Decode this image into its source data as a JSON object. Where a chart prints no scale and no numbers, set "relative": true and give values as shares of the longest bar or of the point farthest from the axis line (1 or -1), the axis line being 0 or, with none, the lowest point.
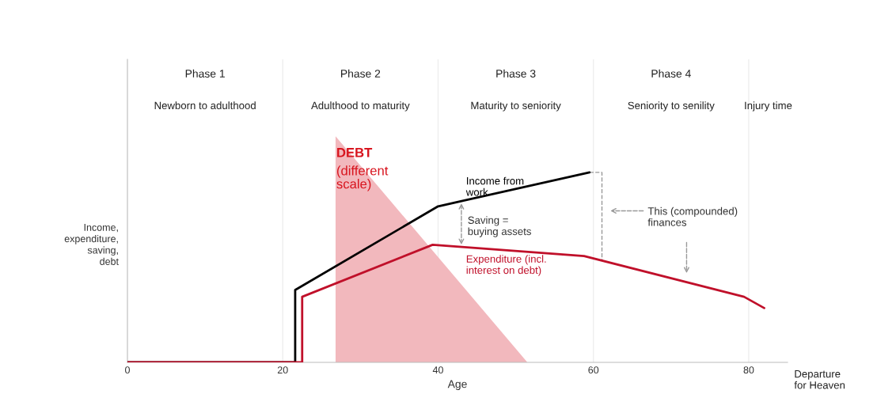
{
  "chart_data": {
    "type": "line",
    "relative": true,
    "xlabel": "Age",
    "ylabel": "Income,\nexpenditure,\nsaving,\ndebt",
    "xlim": [
      0,
      85
    ],
    "xticks": [
      0,
      20,
      40,
      60,
      80
    ],
    "tick_labels": "x",
    "grid": false,
    "legend": false,
    "series": [
      {
        "name": "DEBT (different scale)",
        "type": "area",
        "color": "#f2b8bd",
        "x": [
          26.8,
          26.8,
          51.5
        ],
        "values": [
          0,
          1,
          0
        ]
      },
      {
        "name": "Income from work",
        "color": "#000000",
        "x": [
          0,
          21.6,
          21.6,
          40,
          59.5
        ],
        "values": [
          0,
          0,
          0.32,
          0.69,
          0.84
        ]
      },
      {
        "name": "Expenditure (incl. interest on debt)",
        "color": "#c0102a",
        "x": [
          0,
          22.5,
          22.5,
          39.3,
          58.8,
          79.4,
          82
        ],
        "values": [
          0,
          0,
          0.29,
          0.52,
          0.47,
          0.29,
          0.24
        ]
      }
    ],
    "ref_lines": [
      {
        "axis": "x",
        "value": 20,
        "color": "#eeeeee"
      },
      {
        "axis": "x",
        "value": 40,
        "color": "#eeeeee"
      },
      {
        "axis": "x",
        "value": 60,
        "color": "#eeeeee"
      },
      {
        "axis": "x",
        "value": 80,
        "color": "#eeeeee"
      }
    ],
    "annotations": [
      "Phase 1",
      "Newborn to adulthood",
      "Phase 2",
      "Adulthood to maturity",
      "Phase 3",
      "Maturity to seniority",
      "Phase 4",
      "Seniority to senility",
      "Injury time",
      "Saving =\nbuying assets",
      "This (compounded)\nfinances",
      "Departure\nfor Heaven"
    ]
  }
}
